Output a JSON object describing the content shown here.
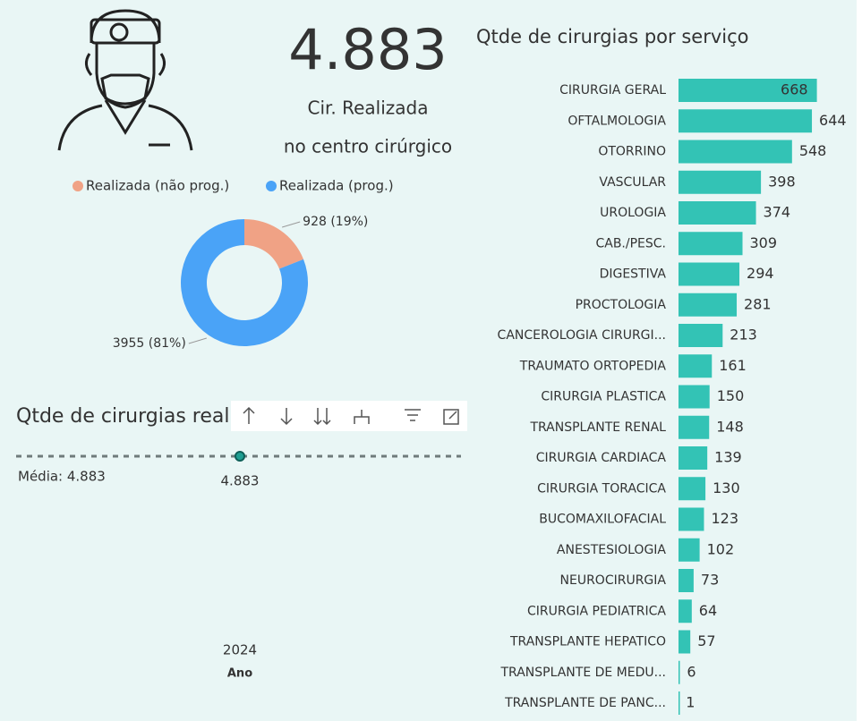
{
  "kpi": {
    "value": "4.883",
    "label_line1": "Cir. Realizada",
    "label_line2": "no centro cirúrgico"
  },
  "chart_data": [
    {
      "type": "pie",
      "donut": true,
      "legend": "top",
      "categories": [
        "Realizada (não prog.)",
        "Realizada (prog.)"
      ],
      "values": [
        928,
        3955
      ],
      "value_labels": [
        "928 (19%)",
        "3955 (81%)"
      ],
      "colors": [
        "#f0a285",
        "#4aa3f7"
      ]
    },
    {
      "type": "line",
      "title": "Qtde de cirurgias realizadas por ano",
      "categories": [
        "2024"
      ],
      "values": [
        4883
      ],
      "value_labels": [
        "4.883"
      ],
      "x_label": "Ano",
      "average": 4883,
      "average_label": "Média: 4.883",
      "color": "#1f9e92"
    },
    {
      "type": "bar",
      "orientation": "horizontal",
      "title": "Qtde de cirurgias por serviço",
      "categories": [
        "CIRURGIA GERAL",
        "OFTALMOLOGIA",
        "OTORRINO",
        "VASCULAR",
        "UROLOGIA",
        "CAB./PESC.",
        "DIGESTIVA",
        "PROCTOLOGIA",
        "CANCEROLOGIA CIRURGI...",
        "TRAUMATO ORTOPEDIA",
        "CIRURGIA PLASTICA",
        "TRANSPLANTE RENAL",
        "CIRURGIA CARDIACA",
        "CIRURGIA TORACICA",
        "BUCOMAXILOFACIAL",
        "ANESTESIOLOGIA",
        "NEUROCIRURGIA",
        "CIRURGIA PEDIATRICA",
        "TRANSPLANTE HEPATICO",
        "TRANSPLANTE DE MEDU...",
        "TRANSPLANTE DE PANC..."
      ],
      "values": [
        668,
        644,
        548,
        398,
        374,
        309,
        294,
        281,
        213,
        161,
        150,
        148,
        139,
        130,
        123,
        102,
        73,
        64,
        57,
        6,
        1
      ],
      "color": "#33c3b5",
      "xlim": [
        0,
        700
      ]
    }
  ]
}
